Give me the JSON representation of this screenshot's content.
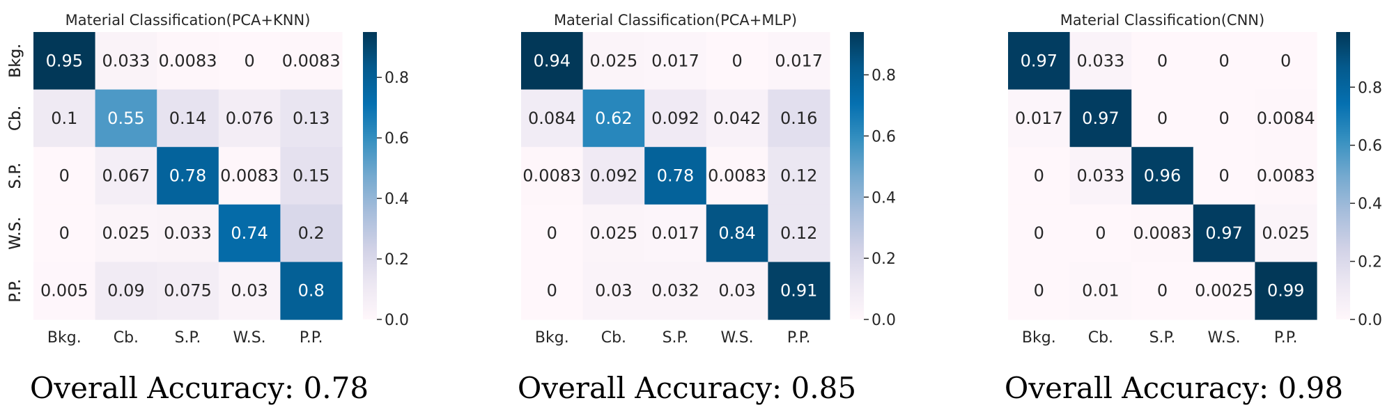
{
  "chart_data": [
    {
      "type": "heatmap",
      "title": "Material Classification(PCA+KNN)",
      "x_categories": [
        "Bkg.",
        "Cb.",
        "S.P.",
        "W.S.",
        "P.P."
      ],
      "y_categories": [
        "Bkg.",
        "Cb.",
        "S.P.",
        "W.S.",
        "P.P."
      ],
      "values": [
        [
          0.95,
          0.033,
          0.0083,
          0,
          0.0083
        ],
        [
          0.1,
          0.55,
          0.14,
          0.076,
          0.13
        ],
        [
          0,
          0.067,
          0.78,
          0.0083,
          0.15
        ],
        [
          0,
          0.025,
          0.033,
          0.74,
          0.2
        ],
        [
          0.005,
          0.09,
          0.075,
          0.03,
          0.8
        ]
      ],
      "labels": [
        [
          "0.95",
          "0.033",
          "0.0083",
          "0",
          "0.0083"
        ],
        [
          "0.1",
          "0.55",
          "0.14",
          "0.076",
          "0.13"
        ],
        [
          "0",
          "0.067",
          "0.78",
          "0.0083",
          "0.15"
        ],
        [
          "0",
          "0.025",
          "0.033",
          "0.74",
          "0.2"
        ],
        [
          "0.005",
          "0.09",
          "0.075",
          "0.03",
          "0.8"
        ]
      ],
      "colorbar": {
        "range": [
          0,
          0.95
        ],
        "ticks": [
          "0.0",
          "0.2",
          "0.4",
          "0.6",
          "0.8"
        ]
      },
      "colormap": "PuBu",
      "caption": "Overall Accuracy: 0.78"
    },
    {
      "type": "heatmap",
      "title": "Material Classification(PCA+MLP)",
      "x_categories": [
        "Bkg.",
        "Cb.",
        "S.P.",
        "W.S.",
        "P.P."
      ],
      "y_categories": [
        "Bkg.",
        "Cb.",
        "S.P.",
        "W.S.",
        "P.P."
      ],
      "values": [
        [
          0.94,
          0.025,
          0.017,
          0,
          0.017
        ],
        [
          0.084,
          0.62,
          0.092,
          0.042,
          0.16
        ],
        [
          0.0083,
          0.092,
          0.78,
          0.0083,
          0.12
        ],
        [
          0,
          0.025,
          0.017,
          0.84,
          0.12
        ],
        [
          0,
          0.03,
          0.032,
          0.03,
          0.91
        ]
      ],
      "labels": [
        [
          "0.94",
          "0.025",
          "0.017",
          "0",
          "0.017"
        ],
        [
          "0.084",
          "0.62",
          "0.092",
          "0.042",
          "0.16"
        ],
        [
          "0.0083",
          "0.092",
          "0.78",
          "0.0083",
          "0.12"
        ],
        [
          "0",
          "0.025",
          "0.017",
          "0.84",
          "0.12"
        ],
        [
          "0",
          "0.03",
          "0.032",
          "0.03",
          "0.91"
        ]
      ],
      "colorbar": {
        "range": [
          0,
          0.94
        ],
        "ticks": [
          "0.0",
          "0.2",
          "0.4",
          "0.6",
          "0.8"
        ]
      },
      "colormap": "PuBu",
      "caption": "Overall Accuracy: 0.85"
    },
    {
      "type": "heatmap",
      "title": "Material Classification(CNN)",
      "x_categories": [
        "Bkg.",
        "Cb.",
        "S.P.",
        "W.S.",
        "P.P."
      ],
      "y_categories": [
        "Bkg.",
        "Cb.",
        "S.P.",
        "W.S.",
        "P.P."
      ],
      "values": [
        [
          0.97,
          0.033,
          0,
          0,
          0
        ],
        [
          0.017,
          0.97,
          0,
          0,
          0.0084
        ],
        [
          0,
          0.033,
          0.96,
          0,
          0.0083
        ],
        [
          0,
          0,
          0.0083,
          0.97,
          0.025
        ],
        [
          0,
          0.01,
          0,
          0.0025,
          0.99
        ]
      ],
      "labels": [
        [
          "0.97",
          "0.033",
          "0",
          "0",
          "0"
        ],
        [
          "0.017",
          "0.97",
          "0",
          "0",
          "0.0084"
        ],
        [
          "0",
          "0.033",
          "0.96",
          "0",
          "0.0083"
        ],
        [
          "0",
          "0",
          "0.0083",
          "0.97",
          "0.025"
        ],
        [
          "0",
          "0.01",
          "0",
          "0.0025",
          "0.99"
        ]
      ],
      "colorbar": {
        "range": [
          0,
          0.99
        ],
        "ticks": [
          "0.0",
          "0.2",
          "0.4",
          "0.6",
          "0.8"
        ]
      },
      "colormap": "PuBu",
      "caption": "Overall Accuracy: 0.98"
    }
  ]
}
